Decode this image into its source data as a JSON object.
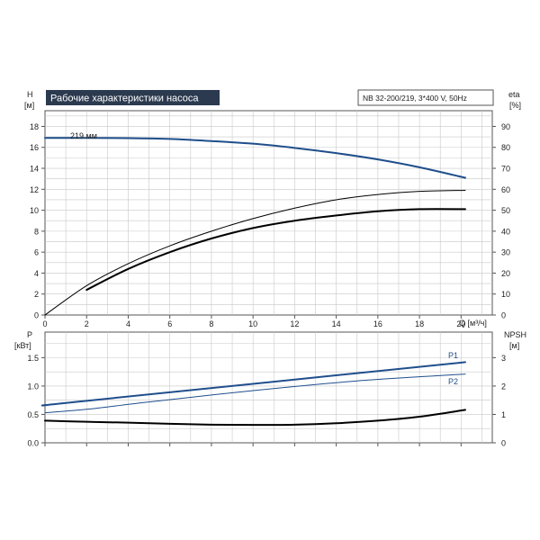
{
  "colors": {
    "head_curve": "#1f4e8c",
    "p1_curve": "#1f4e8c",
    "p2_curve": "#1f4e8c",
    "efficiency_curve": "#000000",
    "npsh_curve": "#000000",
    "grid": "#c8c8c8",
    "title_bg": "#2b3a4f",
    "title_fg": "#ffffff"
  },
  "chart_data": [
    {
      "type": "line",
      "title": "Рабочие характеристики насоса",
      "model_label": "NB 32-200/219, 3*400 V, 50Hz",
      "xlabel": "Q [м³/ч]",
      "ylabel": "H",
      "ylabel_unit": "[м]",
      "y2label": "eta",
      "y2label_unit": "[%]",
      "xlim": [
        0,
        21.5
      ],
      "ylim": [
        0,
        19.5
      ],
      "y2lim": [
        0,
        97.5
      ],
      "x_ticks": [
        "0",
        "2",
        "4",
        "6",
        "8",
        "10",
        "12",
        "14",
        "16",
        "18",
        "20"
      ],
      "y_ticks": [
        "0",
        "2",
        "4",
        "6",
        "8",
        "10",
        "12",
        "14",
        "16",
        "18"
      ],
      "y2_ticks": [
        "0",
        "10",
        "20",
        "30",
        "40",
        "50",
        "60",
        "70",
        "80",
        "90"
      ],
      "grid": true,
      "series": [
        {
          "name": "219 мм",
          "axis": "left",
          "x": [
            0,
            2,
            4,
            6,
            8,
            10,
            12,
            14,
            16,
            18,
            20.2
          ],
          "values": [
            16.9,
            16.9,
            16.88,
            16.8,
            16.6,
            16.35,
            15.95,
            15.45,
            14.85,
            14.1,
            13.1
          ]
        },
        {
          "name": "",
          "axis": "right",
          "x": [
            0,
            2,
            4,
            6,
            8,
            10,
            12,
            14,
            16,
            18,
            20.2
          ],
          "values": [
            0,
            14,
            24.5,
            33,
            40,
            46,
            51,
            55,
            57.5,
            59,
            59.5
          ]
        },
        {
          "name": "",
          "axis": "right",
          "x": [
            2,
            4,
            6,
            8,
            10,
            12,
            14,
            16,
            18,
            20.2
          ],
          "values": [
            12,
            22,
            30,
            36.5,
            41.5,
            45,
            47.5,
            49.5,
            50.5,
            50.5
          ]
        }
      ]
    },
    {
      "type": "line",
      "ylabel": "P",
      "ylabel_unit": "[кВт]",
      "y2label": "NPSH",
      "y2label_unit": "[м]",
      "xlim": [
        0,
        21.5
      ],
      "ylim": [
        0,
        1.95
      ],
      "y2lim": [
        0,
        3.9
      ],
      "y_ticks": [
        "0.0",
        "0.5",
        "1.0",
        "1.5"
      ],
      "y2_ticks": [
        "0",
        "1",
        "2",
        "3"
      ],
      "grid": true,
      "series": [
        {
          "name": "P1",
          "axis": "left",
          "x": [
            0,
            2,
            20.2
          ],
          "values": [
            0.66,
            0.74,
            1.42
          ]
        },
        {
          "name": "P2",
          "axis": "left",
          "x": [
            0,
            2,
            5,
            10,
            15,
            20.2
          ],
          "values": [
            0.53,
            0.59,
            0.72,
            0.92,
            1.09,
            1.21
          ]
        },
        {
          "name": "",
          "axis": "right",
          "x": [
            0,
            2,
            4,
            6,
            8,
            10,
            12,
            14,
            16,
            18,
            20.2
          ],
          "values": [
            0.78,
            0.74,
            0.71,
            0.67,
            0.64,
            0.63,
            0.64,
            0.69,
            0.78,
            0.92,
            1.16
          ]
        }
      ]
    }
  ]
}
